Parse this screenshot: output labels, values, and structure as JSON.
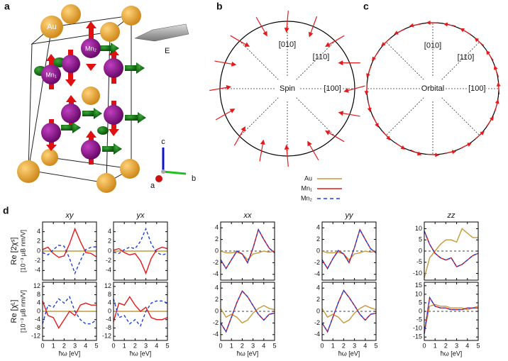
{
  "structure": {
    "panel": "a",
    "atoms": [
      "Au",
      "Mn₁",
      "Mn₂"
    ],
    "field": "E",
    "axes": [
      "c",
      "b",
      "a"
    ]
  },
  "spin_plot": {
    "panel": "b",
    "center_label": "Spin",
    "direction_labels": [
      "[010]",
      "[110]",
      "[100]"
    ],
    "arrows": {
      "positions": [
        0,
        22.5,
        45,
        67.5,
        90,
        112.5,
        135,
        157.5,
        180,
        202.5,
        225,
        247.5,
        270,
        292.5,
        315,
        337.5
      ],
      "directions": [
        195,
        180,
        210,
        250,
        265,
        300,
        330,
        350,
        10,
        30,
        60,
        80,
        95,
        120,
        150,
        170
      ]
    }
  },
  "orbital_plot": {
    "panel": "c",
    "center_label": "Orbital",
    "direction_labels": [
      "[010]",
      "[110]",
      "[100]"
    ],
    "arrows": {
      "positions": [
        0,
        15,
        30,
        45,
        60,
        75,
        90,
        105,
        120,
        135,
        150,
        165,
        180,
        195,
        210,
        225,
        240,
        255,
        270,
        285,
        300,
        315,
        330,
        345
      ],
      "directions": [
        95,
        110,
        125,
        140,
        150,
        170,
        180,
        190,
        205,
        220,
        235,
        250,
        265,
        280,
        295,
        310,
        325,
        335,
        355,
        10,
        25,
        40,
        55,
        75
      ]
    }
  },
  "legend": [
    {
      "name": "Au",
      "color": "#c49a3a",
      "dash": false
    },
    {
      "name": "Mn₁",
      "color": "#e41a1c",
      "dash": false
    },
    {
      "name": "Mn₂",
      "color": "#1f3fd8",
      "dash": true
    }
  ],
  "panel_d": "d",
  "chart_data": [
    {
      "type": "line",
      "title": "xy",
      "ylabel": [
        "Re [2χˢ]",
        "[10⁻³ μB nm/V]"
      ],
      "x": [
        0,
        0.5,
        1,
        1.5,
        2,
        2.5,
        3,
        3.5,
        4,
        4.5,
        5
      ],
      "xlim": [
        0,
        5
      ],
      "xticks": [
        0,
        1,
        2,
        3,
        4,
        5
      ],
      "ylim": [
        -6,
        6
      ],
      "yticks": [
        -4,
        -2,
        0,
        2,
        4
      ],
      "zero_line": false,
      "series": [
        {
          "values": [
            0,
            0,
            0,
            0,
            0,
            0,
            0,
            0,
            0,
            0,
            0
          ]
        },
        {
          "values": [
            0.3,
            0.8,
            -0.5,
            -1.3,
            -1.0,
            1.5,
            4.6,
            2.0,
            -0.3,
            -0.5,
            -1.2
          ]
        },
        {
          "values": [
            -0.3,
            -0.8,
            0.3,
            1.2,
            1.0,
            -1.5,
            -4.6,
            -2.0,
            0.3,
            0.8,
            0.9
          ]
        }
      ]
    },
    {
      "type": "line",
      "title": "yx",
      "x": [
        0,
        0.5,
        1,
        1.5,
        2,
        2.5,
        3,
        3.5,
        4,
        4.5,
        5
      ],
      "xlim": [
        0,
        5
      ],
      "xticks": [
        0,
        1,
        2,
        3,
        4,
        5
      ],
      "ylim": [
        -6,
        6
      ],
      "yticks": [
        -4,
        -2,
        0,
        2,
        4
      ],
      "zero_line": false,
      "series": [
        {
          "values": [
            0,
            0,
            0,
            0,
            0,
            0,
            0,
            0,
            0,
            0,
            0
          ]
        },
        {
          "values": [
            0.2,
            0.5,
            -0.3,
            -0.8,
            -0.5,
            -2.0,
            -4.6,
            -1.5,
            0.3,
            0.8,
            0.5
          ]
        },
        {
          "values": [
            -0.2,
            -0.5,
            0.3,
            0.8,
            0.5,
            2.0,
            4.6,
            1.5,
            -0.3,
            -0.8,
            -0.5
          ]
        }
      ]
    },
    {
      "type": "line",
      "title": "xx",
      "x": [
        0,
        0.5,
        1,
        1.5,
        2,
        2.5,
        3,
        3.5,
        4,
        4.5,
        5
      ],
      "xlim": [
        0,
        5
      ],
      "xticks": [
        0,
        1,
        2,
        3,
        4,
        5
      ],
      "ylim": [
        -5,
        5
      ],
      "yticks": [
        -4,
        -2,
        0,
        2,
        4
      ],
      "zero_line": true,
      "series": [
        {
          "values": [
            0,
            -0.3,
            -0.3,
            -0.2,
            -0.5,
            -1.5,
            -0.5,
            -0.3,
            0,
            -0.2,
            0
          ]
        },
        {
          "values": [
            -1.5,
            -3.0,
            -1.5,
            0.0,
            -0.5,
            -2.0,
            0.5,
            3.7,
            2.0,
            0.5,
            -0.3
          ]
        },
        {
          "values": [
            -1.5,
            -3.0,
            -1.5,
            0.0,
            -0.5,
            -2.0,
            0.5,
            3.7,
            2.0,
            0.5,
            -0.3
          ]
        }
      ]
    },
    {
      "type": "line",
      "title": "yy",
      "x": [
        0,
        0.5,
        1,
        1.5,
        2,
        2.5,
        3,
        3.5,
        4,
        4.5,
        5
      ],
      "xlim": [
        0,
        5
      ],
      "xticks": [
        0,
        1,
        2,
        3,
        4,
        5
      ],
      "ylim": [
        -5,
        5
      ],
      "yticks": [
        -4,
        -2,
        0,
        2,
        4
      ],
      "zero_line": true,
      "series": [
        {
          "values": [
            0,
            -0.3,
            -0.3,
            -0.2,
            -0.5,
            -1.5,
            -0.5,
            -0.3,
            0,
            -0.2,
            0
          ]
        },
        {
          "values": [
            -1.5,
            -3.0,
            -1.3,
            0.1,
            -0.5,
            -2.0,
            0.6,
            3.7,
            2.0,
            0.4,
            -0.3
          ]
        },
        {
          "values": [
            -1.5,
            -3.0,
            -1.3,
            0.1,
            -0.5,
            -2.0,
            0.6,
            3.7,
            2.0,
            0.4,
            -0.3
          ]
        }
      ]
    },
    {
      "type": "line",
      "title": "zz",
      "x": [
        0,
        0.5,
        1,
        1.5,
        2,
        2.5,
        3,
        3.5,
        4,
        4.5,
        5
      ],
      "xlim": [
        0,
        5
      ],
      "xticks": [
        0,
        1,
        2,
        3,
        4,
        5
      ],
      "ylim": [
        -13,
        13
      ],
      "yticks": [
        -10,
        -5,
        0,
        5,
        10
      ],
      "zero_line": true,
      "series": [
        {
          "values": [
            -12,
            -3,
            0,
            3,
            5,
            5,
            4,
            10,
            8,
            6,
            6
          ]
        },
        {
          "values": [
            9,
            3,
            -1,
            -3,
            -4,
            -3,
            -7,
            -6,
            -4,
            -2,
            -1
          ]
        },
        {
          "values": [
            9,
            3,
            -1,
            -3,
            -4,
            -3,
            -7,
            -6,
            -4,
            -2,
            -1
          ]
        }
      ]
    },
    {
      "type": "line",
      "xlabel": "ħω [eV]",
      "ylabel": [
        "Re [χᴸ]",
        "[10⁻³ μB nm/V]"
      ],
      "x": [
        0,
        0.5,
        1,
        1.5,
        2,
        2.5,
        3,
        3.5,
        4,
        4.5,
        5
      ],
      "xlim": [
        0,
        5
      ],
      "xticks": [
        0,
        1,
        2,
        3,
        4,
        5
      ],
      "ylim": [
        -14,
        14
      ],
      "yticks": [
        -12,
        -8,
        -4,
        0,
        4,
        8,
        12
      ],
      "zero_line": false,
      "series": [
        {
          "values": [
            0,
            0,
            0,
            0,
            0,
            0,
            0,
            0,
            0,
            0,
            0
          ]
        },
        {
          "values": [
            5,
            -2,
            -3,
            -8,
            -4,
            0,
            -2,
            3,
            4,
            3,
            3
          ]
        },
        {
          "values": [
            -6,
            3,
            2,
            6,
            4,
            7,
            0,
            -4,
            -6,
            -6,
            -4
          ]
        }
      ]
    },
    {
      "type": "line",
      "xlabel": "ħω [eV]",
      "x": [
        0,
        0.5,
        1,
        1.5,
        2,
        2.5,
        3,
        3.5,
        4,
        4.5,
        5
      ],
      "xlim": [
        0,
        5
      ],
      "xticks": [
        0,
        1,
        2,
        3,
        4,
        5
      ],
      "ylim": [
        -14,
        14
      ],
      "yticks": [
        -12,
        -8,
        -4,
        0,
        4,
        8,
        12
      ],
      "zero_line": false,
      "series": [
        {
          "values": [
            0,
            0,
            0,
            0,
            0,
            0,
            0,
            0,
            0,
            0,
            0
          ]
        },
        {
          "values": [
            -5,
            4,
            3,
            7,
            3,
            0,
            2,
            -3,
            -4,
            -4,
            -3
          ]
        },
        {
          "values": [
            6,
            -3,
            -2,
            -6,
            -4,
            -7,
            0,
            4,
            5,
            5,
            4
          ]
        }
      ]
    },
    {
      "type": "line",
      "xlabel": "ħω [eV]",
      "x": [
        0,
        0.5,
        1,
        1.5,
        2,
        2.5,
        3,
        3.5,
        4,
        4.5,
        5
      ],
      "xlim": [
        0,
        5
      ],
      "xticks": [
        0,
        1,
        2,
        3,
        4,
        5
      ],
      "ylim": [
        -5,
        5
      ],
      "yticks": [
        -4,
        -2,
        0,
        2,
        4
      ],
      "zero_line": true,
      "series": [
        {
          "values": [
            0.5,
            -1.0,
            -0.5,
            -1.0,
            -2.0,
            -1.5,
            -0.3,
            0.5,
            1.0,
            0.5,
            0.3
          ]
        },
        {
          "values": [
            -2,
            -3.5,
            -1,
            1.5,
            3.5,
            2.5,
            1,
            -0.5,
            -1.5,
            -0.5,
            -0.3
          ]
        },
        {
          "values": [
            -2,
            -3.5,
            -1,
            1.5,
            3.5,
            2.5,
            1,
            -0.5,
            -1.5,
            -0.5,
            -0.3
          ]
        }
      ]
    },
    {
      "type": "line",
      "xlabel": "ħω [eV]",
      "x": [
        0,
        0.5,
        1,
        1.5,
        2,
        2.5,
        3,
        3.5,
        4,
        4.5,
        5
      ],
      "xlim": [
        0,
        5
      ],
      "xticks": [
        0,
        1,
        2,
        3,
        4,
        5
      ],
      "ylim": [
        -5,
        5
      ],
      "yticks": [
        -4,
        -2,
        0,
        2,
        4
      ],
      "zero_line": true,
      "series": [
        {
          "values": [
            0.5,
            -1.0,
            -0.5,
            -1.0,
            -2.0,
            -1.5,
            -0.3,
            0.5,
            1.0,
            0.6,
            0.3
          ]
        },
        {
          "values": [
            -2,
            -3.5,
            -1,
            1.5,
            3.6,
            2.4,
            1,
            -0.5,
            -1.5,
            -0.5,
            -0.3
          ]
        },
        {
          "values": [
            -2,
            -3.5,
            -1,
            1.5,
            3.6,
            2.4,
            1,
            -0.5,
            -1.5,
            -0.5,
            -0.3
          ]
        }
      ]
    },
    {
      "type": "line",
      "xlabel": "ħω [eV]",
      "x": [
        0,
        0.5,
        1,
        1.5,
        2,
        2.5,
        3,
        3.5,
        4,
        4.5,
        5
      ],
      "xlim": [
        0,
        5
      ],
      "xticks": [
        0,
        1,
        2,
        3,
        4,
        5
      ],
      "ylim": [
        -17,
        17
      ],
      "yticks": [
        -15,
        -10,
        -5,
        0,
        5,
        10,
        15
      ],
      "zero_line": true,
      "series": [
        {
          "values": [
            -12,
            3,
            4,
            3,
            3,
            2,
            2,
            2,
            1,
            2,
            3
          ]
        },
        {
          "values": [
            -13,
            8,
            3,
            2,
            2,
            1,
            1,
            1,
            2,
            2,
            2
          ]
        },
        {
          "values": [
            -13,
            8,
            3,
            2,
            2,
            1,
            1,
            1,
            2,
            2,
            2
          ]
        }
      ]
    }
  ]
}
